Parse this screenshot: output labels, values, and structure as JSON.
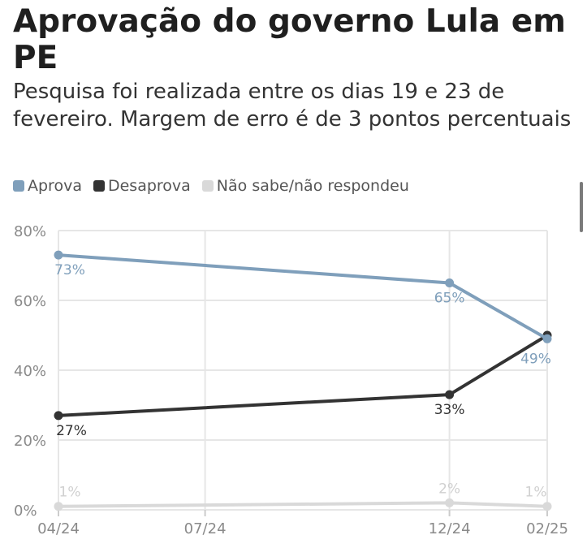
{
  "title": "Aprovação do governo Lula em PE",
  "subtitle": "Pesquisa foi realizada entre os dias 19 e 23 de fevereiro. Margem de erro é de 3 pontos percentuais",
  "chart_data": {
    "type": "line",
    "title": "Aprovação do governo Lula em PE",
    "subtitle": "Pesquisa foi realizada entre os dias 19 e 23 de fevereiro. Margem de erro é de 3 pontos percentuais",
    "x": [
      "2024-04",
      "2024-12",
      "2025-02"
    ],
    "x_ticks": [
      "04/24",
      "07/24",
      "12/24",
      "02/25"
    ],
    "x_tick_values": [
      "2024-04",
      "2024-07",
      "2024-12",
      "2025-02"
    ],
    "y_ticks": [
      "0%",
      "20%",
      "40%",
      "60%",
      "80%"
    ],
    "y_tick_values": [
      0,
      20,
      40,
      60,
      80
    ],
    "ylim": [
      0,
      80
    ],
    "grid": true,
    "legend_position": "top-left",
    "series": [
      {
        "name": "Aprova",
        "color": "#7f9fbb",
        "values": [
          73,
          65,
          49
        ],
        "labels": [
          "73%",
          "65%",
          "49%"
        ]
      },
      {
        "name": "Desaprova",
        "color": "#333333",
        "values": [
          27,
          33,
          50
        ],
        "labels": [
          "27%",
          "33%",
          ""
        ]
      },
      {
        "name": "Não sabe/não respondeu",
        "color": "#d9d9d9",
        "values": [
          1,
          2,
          1
        ],
        "labels": [
          "1%",
          "2%",
          "1%"
        ]
      }
    ]
  }
}
